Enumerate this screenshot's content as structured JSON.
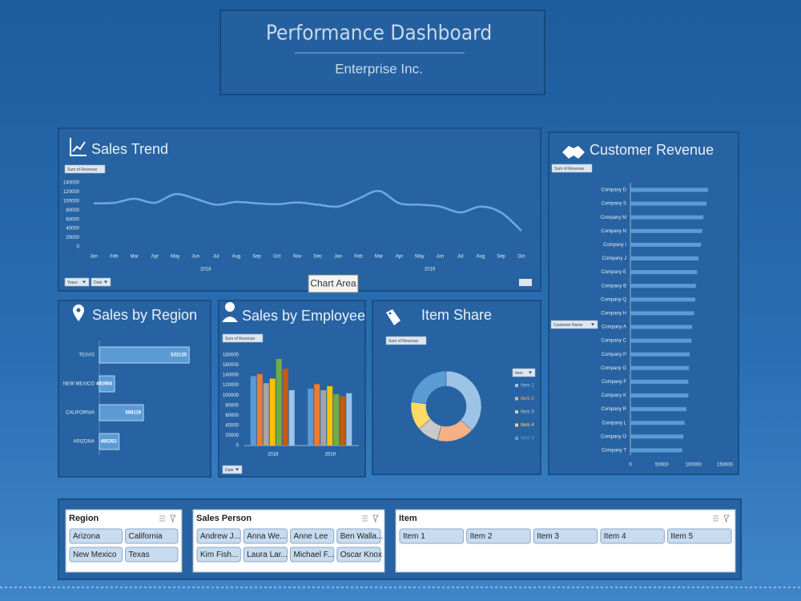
{
  "header": {
    "title": "Performance Dashboard",
    "subtitle": "Enterprise Inc."
  },
  "tooltip": "Chart Area",
  "chart_data": [
    {
      "type": "line",
      "title": "Sales Trend",
      "field_buttons": [
        "Sum of Revenue",
        "Years",
        "Date"
      ],
      "categories": [
        "Jan",
        "Feb",
        "Mar",
        "Apr",
        "May",
        "Jun",
        "Jul",
        "Aug",
        "Sep",
        "Oct",
        "Nov",
        "Dec",
        "Jan",
        "Feb",
        "Mar",
        "Apr",
        "May",
        "Jun",
        "Jul",
        "Aug",
        "Sep",
        "Oct"
      ],
      "category_groups": [
        "2018",
        "2019"
      ],
      "values": [
        95000,
        96000,
        105000,
        96000,
        115000,
        105000,
        92000,
        98000,
        95000,
        93000,
        97000,
        92000,
        88000,
        105000,
        122000,
        95000,
        92000,
        88000,
        75000,
        88000,
        75000,
        35000
      ],
      "color": "#6fa8e0",
      "ylim": [
        0,
        140000
      ],
      "yticks": [
        0,
        20000,
        40000,
        60000,
        80000,
        100000,
        120000,
        140000
      ]
    },
    {
      "type": "hbar",
      "title": "Sales by Region",
      "categories": [
        "TEXAS",
        "NEW MEXICO",
        "CALIFORNIA",
        "ARIZONA"
      ],
      "values": [
        532135,
        492984,
        508119,
        495353
      ],
      "color": "#5b9bd5",
      "xlim": [
        485000,
        535000
      ]
    },
    {
      "type": "column",
      "title": "Sales by Employee",
      "field_buttons": [
        "Sum of Revenue",
        "Date"
      ],
      "categories": [
        "2018",
        "2019"
      ],
      "series": [
        {
          "color": "#5b9bd5",
          "values": [
            138000,
            113000
          ]
        },
        {
          "color": "#ed7d31",
          "values": [
            142000,
            122000
          ]
        },
        {
          "color": "#a5a5a5",
          "values": [
            124000,
            110000
          ]
        },
        {
          "color": "#ffc000",
          "values": [
            133000,
            118000
          ]
        },
        {
          "color": "#70ad47",
          "values": [
            172000,
            102000
          ]
        },
        {
          "color": "#c55a11",
          "values": [
            153000,
            98000
          ]
        },
        {
          "color": "#9dc3e6",
          "values": [
            110000,
            104000
          ]
        }
      ],
      "ylim": [
        0,
        180000
      ],
      "yticks": [
        0,
        20000,
        40000,
        60000,
        80000,
        100000,
        120000,
        140000,
        160000,
        180000
      ]
    },
    {
      "type": "donut",
      "title": "Item Share",
      "field_buttons": [
        "Sum of Revenue",
        "Item"
      ],
      "categories": [
        "Item 1",
        "Item 2",
        "Item 3",
        "Item 4",
        "Item 5"
      ],
      "values": [
        37,
        17,
        10,
        13,
        23
      ],
      "colors": [
        "#9dc3e6",
        "#f4b183",
        "#c9c9c9",
        "#ffd966",
        "#5b9bd5"
      ]
    },
    {
      "type": "hbar",
      "title": "Customer Revenue",
      "field_buttons": [
        "Sum of Revenue",
        "Customer Name"
      ],
      "categories": [
        "Company D",
        "Company S",
        "Company M",
        "Company N",
        "Company I",
        "Company J",
        "Company E",
        "Company B",
        "Company Q",
        "Company H",
        "Company A",
        "Company C",
        "Company P",
        "Company G",
        "Company F",
        "Company K",
        "Company R",
        "Company L",
        "Company O",
        "Company T"
      ],
      "values": [
        123000,
        121000,
        116000,
        114000,
        112000,
        108000,
        106000,
        104000,
        103000,
        101000,
        98000,
        97000,
        94000,
        93000,
        92000,
        92000,
        89000,
        86000,
        84000,
        82000
      ],
      "color": "#5b9bd5",
      "xlim": [
        0,
        150000
      ],
      "xticks": [
        0,
        50000,
        100000,
        150000
      ]
    }
  ],
  "slicers": [
    {
      "title": "Region",
      "items": [
        "Arizona",
        "California",
        "New Mexico",
        "Texas"
      ]
    },
    {
      "title": "Sales Person",
      "items": [
        "Andrew J...",
        "Anna We...",
        "Anne Lee",
        "Ben Walla...",
        "Kim Fish...",
        "Laura Lar...",
        "Michael F...",
        "Oscar Knox"
      ]
    },
    {
      "title": "Item",
      "items": [
        "Item 1",
        "Item 2",
        "Item 3",
        "Item 4",
        "Item 5"
      ]
    }
  ]
}
